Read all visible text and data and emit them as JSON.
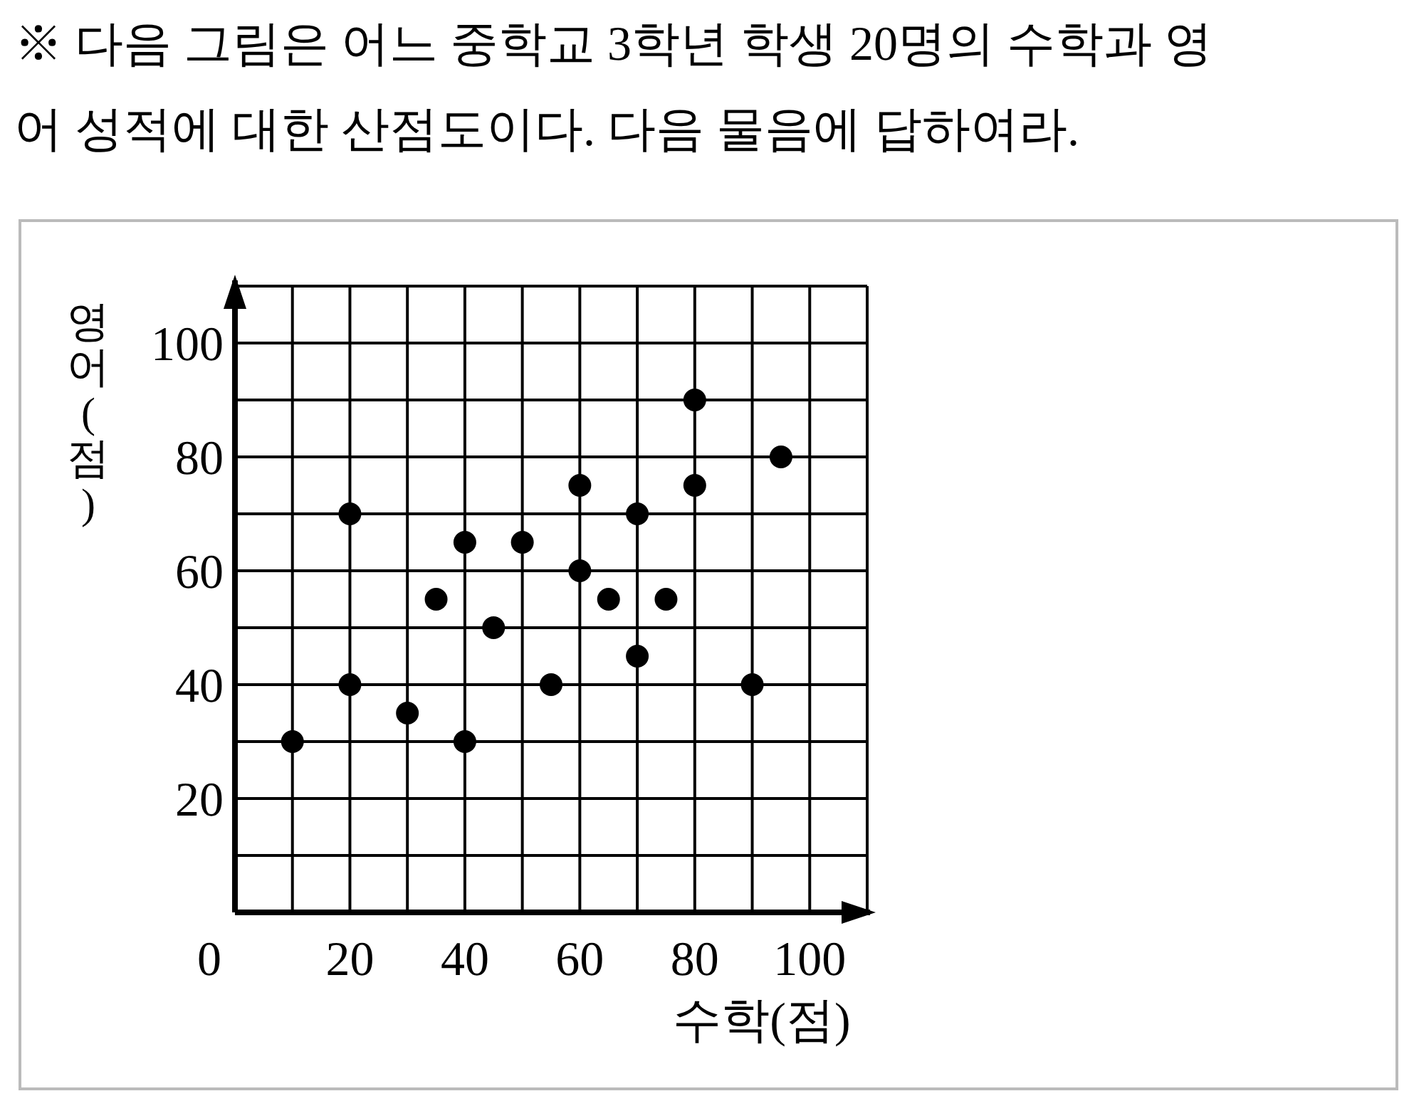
{
  "chart_data": {
    "type": "scatter",
    "title": "※ 다음 그림은 어느 중학교 3학년 학생 20명의 수학과 영어 성적에 대한 산점도이다. 다음 물음에 답하여라.",
    "xlabel": "수학(점)",
    "ylabel": "영어(점)",
    "x": [
      10,
      20,
      20,
      30,
      35,
      40,
      40,
      45,
      50,
      55,
      60,
      60,
      65,
      70,
      70,
      75,
      80,
      80,
      90,
      95
    ],
    "values": [
      30,
      70,
      40,
      35,
      55,
      65,
      30,
      50,
      65,
      40,
      75,
      60,
      55,
      70,
      45,
      55,
      90,
      75,
      40,
      80
    ],
    "color": "#000000",
    "marker": "circle",
    "xlim": [
      0,
      110
    ],
    "ylim": [
      0,
      110
    ],
    "xticks": [
      {
        "value": 0,
        "label": "0"
      },
      {
        "value": 10,
        "label": null
      },
      20,
      {
        "value": 30,
        "label": null
      },
      40,
      {
        "value": 50,
        "label": null
      },
      60,
      {
        "value": 70,
        "label": null
      },
      80,
      {
        "value": 90,
        "label": null
      },
      100
    ],
    "yticks": [
      {
        "value": 10,
        "label": null
      },
      20,
      {
        "value": 30,
        "label": null
      },
      40,
      {
        "value": 50,
        "label": null
      },
      60,
      {
        "value": 70,
        "label": null
      },
      80,
      {
        "value": 90,
        "label": null
      },
      100
    ],
    "grid": true
  }
}
